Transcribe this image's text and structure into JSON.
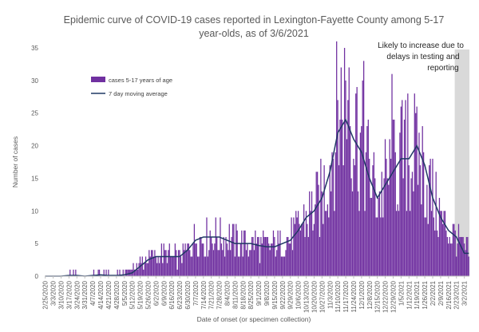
{
  "chart_data": {
    "type": "bar",
    "title_lines": [
      "Epidemic curve of COVID-19 cases reported in Lexington-Fayette County among 5-17",
      "year-olds, as of 3/6/2021"
    ],
    "xlabel": "Date of onset (or specimen collection)",
    "ylabel": "Number of cases",
    "ylim": [
      0,
      35
    ],
    "yticks": [
      0,
      5,
      10,
      15,
      20,
      25,
      30,
      35
    ],
    "grid": false,
    "legend_position": "top-left",
    "x_start": "2020-02-25",
    "x_end": "2021-03-06",
    "x_tick_labels": [
      "2/25/2020",
      "3/3/2020",
      "3/10/2020",
      "3/17/2020",
      "3/24/2020",
      "3/31/2020",
      "4/7/2020",
      "4/14/2020",
      "4/21/2020",
      "4/28/2020",
      "5/5/2020",
      "5/12/2020",
      "5/19/2020",
      "5/26/2020",
      "6/2/2020",
      "6/9/2020",
      "6/16/2020",
      "6/23/2020",
      "6/30/2020",
      "7/7/2020",
      "7/14/2020",
      "7/21/2020",
      "7/28/2020",
      "8/4/2020",
      "8/11/2020",
      "8/18/2020",
      "8/25/2020",
      "9/1/2020",
      "9/8/2020",
      "9/15/2020",
      "9/22/2020",
      "9/29/2020",
      "10/6/2020",
      "10/13/2020",
      "10/20/2020",
      "10/27/2020",
      "11/3/2020",
      "11/10/2020",
      "11/17/2020",
      "11/24/2020",
      "12/1/2020",
      "12/8/2020",
      "12/15/2020",
      "12/22/2020",
      "12/29/2020",
      "1/5/2021",
      "1/12/2021",
      "1/19/2021",
      "1/26/2021",
      "2/2/2021",
      "2/9/2021",
      "2/16/2021",
      "2/23/2021",
      "3/2/2021"
    ],
    "series": [
      {
        "name": "cases 5-17 years of age",
        "kind": "bar",
        "color": "#7030a0",
        "weekly_values": [
          0,
          0,
          0,
          0.3,
          0.2,
          0,
          0.3,
          0.5,
          0.3,
          0.2,
          0.5,
          1,
          2,
          3,
          3,
          3.5,
          3,
          3,
          4,
          6,
          6,
          6.5,
          6,
          6,
          5.5,
          5,
          5,
          5,
          4.5,
          4.5,
          5,
          6,
          7,
          9,
          10,
          12,
          17,
          25,
          28,
          23,
          20,
          16,
          12,
          14,
          16,
          18,
          18,
          19,
          16,
          12,
          9,
          7,
          6,
          4
        ],
        "peaks": [
          {
            "date": "2020-11-17",
            "value": 30
          },
          {
            "date": "2020-11-20",
            "value": 32
          },
          {
            "date": "2020-11-26",
            "value": 28
          },
          {
            "date": "2020-12-03",
            "value": 33
          },
          {
            "date": "2020-12-28",
            "value": 31
          },
          {
            "date": "2021-01-11",
            "value": 28
          },
          {
            "date": "2021-01-19",
            "value": 26
          }
        ]
      },
      {
        "name": "7 day moving average",
        "kind": "line",
        "color": "#1f3864",
        "weekly_values": [
          0,
          0,
          0,
          0.1,
          0.1,
          0,
          0.1,
          0.2,
          0.1,
          0.1,
          0.2,
          0.5,
          1.5,
          2.5,
          3,
          3,
          3,
          3,
          4,
          5.5,
          6,
          6,
          6,
          5.5,
          5,
          5,
          5,
          4.7,
          4.5,
          4.5,
          5,
          5.5,
          7,
          9,
          10,
          12,
          16,
          22,
          24,
          21,
          19,
          15,
          12,
          14,
          16,
          18,
          18,
          20,
          17,
          12,
          9,
          7,
          6,
          3.5
        ]
      }
    ],
    "annotation": {
      "lines": [
        "Likely to increase due to",
        "delays in testing and",
        "reporting"
      ],
      "shade_start": "2021-02-22",
      "shade_end": "2021-03-06",
      "shade_color": "#d9d9d9"
    }
  }
}
